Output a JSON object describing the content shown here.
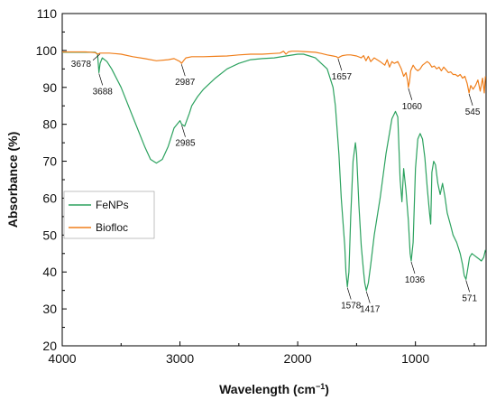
{
  "colors": {
    "FeNPs": "#2ca25f",
    "Biofloc": "#f07f1b",
    "axis": "#000000"
  },
  "chart_data": {
    "type": "line",
    "xlabel": "Wavelength (cm",
    "xlabel_sup": "−1",
    "xlabel_tail": ")",
    "ylabel": "Absorbance (%)",
    "xlim": [
      4000,
      400
    ],
    "ylim": [
      20,
      110
    ],
    "x_reversed": true,
    "xticks": [
      "4000",
      "3000",
      "2000",
      "1000"
    ],
    "yticks": [
      "20",
      "30",
      "40",
      "50",
      "60",
      "70",
      "80",
      "90",
      "100",
      "110"
    ],
    "grid": false,
    "legend_position": "left-middle",
    "series": [
      {
        "name": "FeNPs",
        "color": "#2ca25f",
        "x": [
          4000,
          3800,
          3720,
          3700,
          3688,
          3678,
          3660,
          3620,
          3580,
          3500,
          3400,
          3300,
          3250,
          3200,
          3150,
          3100,
          3050,
          3000,
          2985,
          2960,
          2920,
          2900,
          2850,
          2800,
          2700,
          2600,
          2500,
          2400,
          2300,
          2200,
          2100,
          2000,
          1950,
          1900,
          1850,
          1800,
          1750,
          1700,
          1680,
          1650,
          1630,
          1600,
          1590,
          1578,
          1565,
          1550,
          1530,
          1510,
          1500,
          1480,
          1460,
          1440,
          1430,
          1417,
          1400,
          1380,
          1350,
          1300,
          1250,
          1200,
          1170,
          1150,
          1130,
          1115,
          1100,
          1080,
          1060,
          1045,
          1036,
          1020,
          1000,
          980,
          960,
          940,
          920,
          900,
          880,
          870,
          860,
          845,
          830,
          810,
          790,
          770,
          750,
          730,
          700,
          680,
          650,
          620,
          600,
          585,
          571,
          560,
          540,
          520,
          500,
          480,
          460,
          440,
          420,
          405
        ],
        "y": [
          99.5,
          99.5,
          99.5,
          99.0,
          94.0,
          96.5,
          98.0,
          97.0,
          95.0,
          90.0,
          82.0,
          74.0,
          70.5,
          69.5,
          70.5,
          74.0,
          79.0,
          81.0,
          80.0,
          79.5,
          83.0,
          85.0,
          87.5,
          89.5,
          92.5,
          95.0,
          96.5,
          97.5,
          97.8,
          98.0,
          98.5,
          99.0,
          99.0,
          98.5,
          98.0,
          96.5,
          95.0,
          90.0,
          85.0,
          72.0,
          60.0,
          47.0,
          40.0,
          36.0,
          40.0,
          55.0,
          70.0,
          75.0,
          72.0,
          58.0,
          47.0,
          40.0,
          37.0,
          35.0,
          37.0,
          42.0,
          50.0,
          60.0,
          72.0,
          81.5,
          83.5,
          82.0,
          65.0,
          59.0,
          68.0,
          62.0,
          54.0,
          45.0,
          43.0,
          48.0,
          68.0,
          76.0,
          77.5,
          76.0,
          71.0,
          63.0,
          56.0,
          53.0,
          67.0,
          70.0,
          69.0,
          64.0,
          61.0,
          64.0,
          60.5,
          56.0,
          52.5,
          50.0,
          48.0,
          45.0,
          42.0,
          39.0,
          38.0,
          40.0,
          44.0,
          45.0,
          44.5,
          44.0,
          43.5,
          43.0,
          44.0,
          46.0
        ]
      },
      {
        "name": "Biofloc",
        "color": "#f07f1b",
        "x": [
          4000,
          3900,
          3800,
          3720,
          3700,
          3678,
          3650,
          3600,
          3500,
          3400,
          3300,
          3200,
          3100,
          3050,
          3000,
          2987,
          2970,
          2950,
          2900,
          2800,
          2700,
          2600,
          2500,
          2400,
          2300,
          2200,
          2150,
          2120,
          2100,
          2080,
          2050,
          2000,
          1950,
          1900,
          1850,
          1800,
          1750,
          1700,
          1670,
          1657,
          1640,
          1620,
          1600,
          1580,
          1550,
          1500,
          1460,
          1440,
          1420,
          1400,
          1380,
          1350,
          1300,
          1260,
          1240,
          1220,
          1200,
          1180,
          1150,
          1120,
          1100,
          1080,
          1065,
          1060,
          1050,
          1040,
          1020,
          1000,
          980,
          960,
          940,
          920,
          900,
          880,
          860,
          840,
          820,
          800,
          780,
          760,
          740,
          720,
          700,
          680,
          660,
          640,
          620,
          600,
          580,
          560,
          545,
          530,
          510,
          490,
          470,
          450,
          430,
          415,
          405
        ],
        "y": [
          99.6,
          99.6,
          99.6,
          99.4,
          99.0,
          99.3,
          99.3,
          99.3,
          99.0,
          98.3,
          97.8,
          97.2,
          97.5,
          97.8,
          97.0,
          96.5,
          97.2,
          98.0,
          98.3,
          98.3,
          98.4,
          98.5,
          98.8,
          99.0,
          99.0,
          99.2,
          99.3,
          99.8,
          99.0,
          99.6,
          99.8,
          99.8,
          99.7,
          99.6,
          99.5,
          99.2,
          98.8,
          98.5,
          98.3,
          98.0,
          98.3,
          98.6,
          98.7,
          98.8,
          98.8,
          98.5,
          98.0,
          98.6,
          97.2,
          98.4,
          97.0,
          98.0,
          97.0,
          96.0,
          97.5,
          95.5,
          97.0,
          96.5,
          97.0,
          95.0,
          93.0,
          94.0,
          91.5,
          90.0,
          91.5,
          94.5,
          96.0,
          95.0,
          94.5,
          95.0,
          96.0,
          96.5,
          97.0,
          96.5,
          95.5,
          95.8,
          95.0,
          95.5,
          94.5,
          95.5,
          94.8,
          94.0,
          94.2,
          93.5,
          93.5,
          93.0,
          93.5,
          92.5,
          93.0,
          91.0,
          88.5,
          90.5,
          89.5,
          90.5,
          92.0,
          89.0,
          92.5,
          88.5,
          93.0
        ]
      }
    ],
    "annotations": [
      {
        "text": "3678",
        "x": 3678,
        "y": 99.3,
        "series": "Biofloc",
        "dir": "left"
      },
      {
        "text": "3688",
        "x": 3688,
        "y": 94.0,
        "series": "FeNPs",
        "dir": "below"
      },
      {
        "text": "2987",
        "x": 2987,
        "y": 96.5,
        "series": "Biofloc",
        "dir": "below"
      },
      {
        "text": "2985",
        "x": 2985,
        "y": 80.0,
        "series": "FeNPs",
        "dir": "below"
      },
      {
        "text": "1657",
        "x": 1657,
        "y": 98.0,
        "series": "Biofloc",
        "dir": "below"
      },
      {
        "text": "1578",
        "x": 1578,
        "y": 36.0,
        "series": "FeNPs",
        "dir": "below"
      },
      {
        "text": "1417",
        "x": 1417,
        "y": 35.0,
        "series": "FeNPs",
        "dir": "below"
      },
      {
        "text": "1060",
        "x": 1060,
        "y": 90.0,
        "series": "Biofloc",
        "dir": "below"
      },
      {
        "text": "1036",
        "x": 1036,
        "y": 43.0,
        "series": "FeNPs",
        "dir": "below"
      },
      {
        "text": "545",
        "x": 545,
        "y": 88.5,
        "series": "Biofloc",
        "dir": "below"
      },
      {
        "text": "571",
        "x": 571,
        "y": 38.0,
        "series": "FeNPs",
        "dir": "below"
      }
    ]
  }
}
